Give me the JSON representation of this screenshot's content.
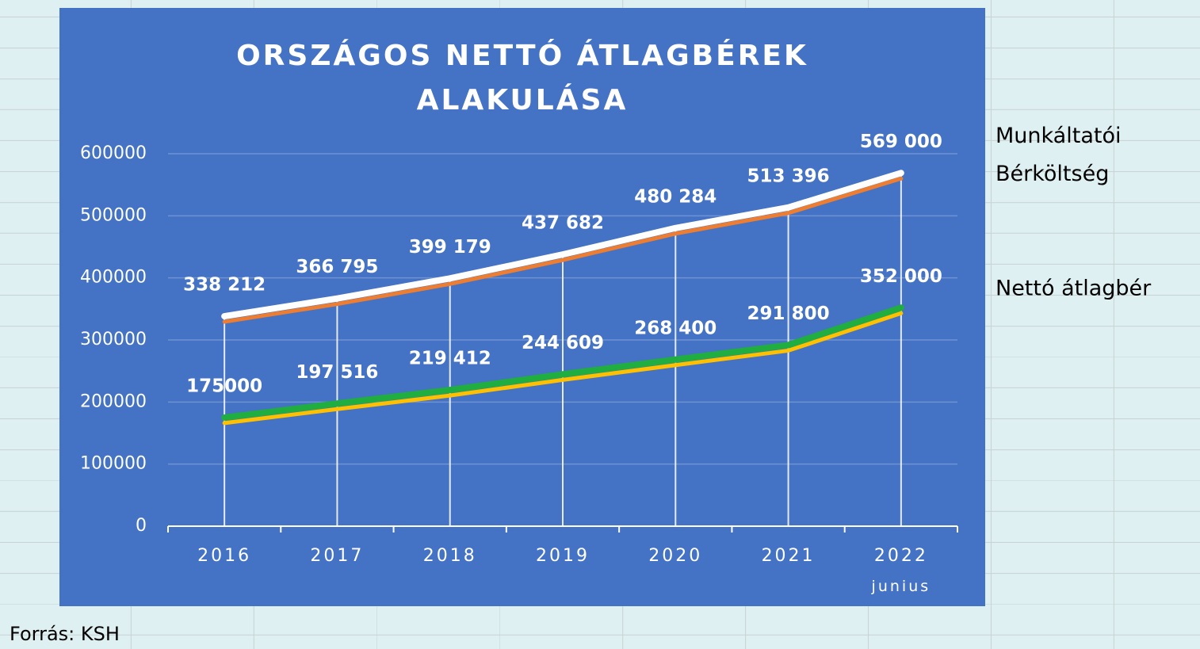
{
  "chart_data": {
    "type": "line",
    "title": "ORSZÁGOS NETTÓ ÁTLAGBÉREK ALAKULÁSA",
    "categories": [
      "2016",
      "2017",
      "2018",
      "2019",
      "2020",
      "2021",
      "2022 junius"
    ],
    "series": [
      {
        "name": "Munkáltatói Bérköltség",
        "color": "#ffffff",
        "shadow_color": "#ed7d31",
        "values": [
          338212,
          366795,
          399179,
          437682,
          480284,
          513396,
          569000
        ],
        "value_labels": [
          "338 212",
          "366 795",
          "399 179",
          "437 682",
          "480 284",
          "513 396",
          "569 000"
        ]
      },
      {
        "name": "Nettó átlagbér",
        "color": "#1fae3f",
        "shadow_color": "#ffc000",
        "values": [
          175000,
          197516,
          219412,
          244609,
          268400,
          291800,
          352000
        ],
        "value_labels": [
          "175000",
          "197 516",
          "219 412",
          "244 609",
          "268 400",
          "291 800",
          "352 000"
        ]
      }
    ],
    "ylim": [
      0,
      600000
    ],
    "yticks": [
      0,
      100000,
      200000,
      300000,
      400000,
      500000,
      600000
    ],
    "grid": true,
    "source": "Forrás: KSH"
  }
}
